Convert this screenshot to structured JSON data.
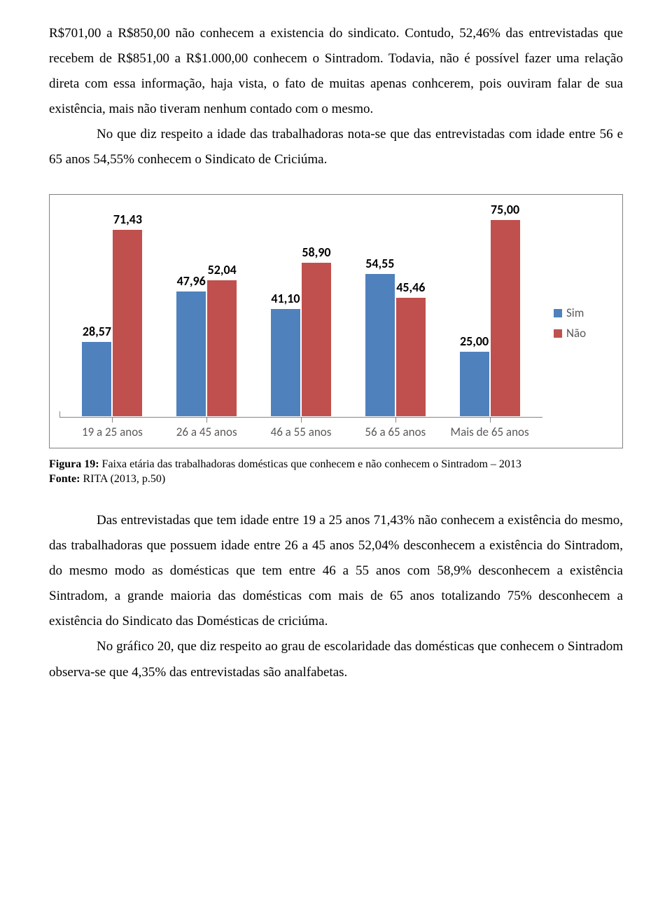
{
  "paragraphs": {
    "p1": "R$701,00 a R$850,00 não conhecem a existencia do sindicato. Contudo, 52,46% das entrevistadas que recebem de R$851,00 a R$1.000,00 conhecem o Sintradom. Todavia, não é possível fazer uma relação direta com essa informação, haja vista, o fato de muitas apenas conhcerem, pois ouviram falar de sua existência, mais não tiveram nenhum contado com o mesmo.",
    "p2": "No que diz respeito a idade das trabalhadoras nota-se que das entrevistadas com idade entre 56 e 65 anos 54,55% conhecem o Sindicato de Criciúma.",
    "p3": "Das entrevistadas que tem idade entre 19 a 25 anos 71,43% não conhecem a existência do mesmo, das trabalhadoras que possuem idade entre 26 a 45 anos 52,04% desconhecem a existência do Sintradom, do mesmo modo as domésticas que tem entre 46 a 55 anos com 58,9% desconhecem a existência Sintradom, a grande maioria  das domésticas com mais de 65 anos  totalizando 75% desconhecem a existência do Sindicato das Domésticas de criciúma.",
    "p4": "No gráfico 20, que diz respeito ao grau de escolaridade das domésticas que conhecem o Sintradom observa-se que 4,35% das entrevistadas são analfabetas."
  },
  "caption": {
    "fig_label": "Figura 19:",
    "fig_text": " Faixa etária das trabalhadoras domésticas que conhecem e não conhecem o Sintradom – 2013",
    "src_label": "Fonte:",
    "src_text": " RITA (2013, p.50)"
  },
  "chart": {
    "type": "bar",
    "ymax": 80,
    "series_colors": {
      "sim": "#4f81bd",
      "nao": "#c0504d"
    },
    "bar_border": "#ffffff",
    "axis_color": "#868686",
    "label_fontsize": 18,
    "xlabel_fontsize": 17,
    "legend": [
      {
        "key": "sim",
        "label": "Sim",
        "color": "#4f81bd"
      },
      {
        "key": "nao",
        "label": "Não",
        "color": "#c0504d"
      }
    ],
    "categories": [
      {
        "label": "19 a 25 anos",
        "sim": 28.57,
        "nao": 71.43,
        "sim_txt": "28,57",
        "nao_txt": "71,43"
      },
      {
        "label": "26 a 45 anos",
        "sim": 47.96,
        "nao": 52.04,
        "sim_txt": "47,96",
        "nao_txt": "52,04"
      },
      {
        "label": "46 a 55 anos",
        "sim": 41.1,
        "nao": 58.9,
        "sim_txt": "41,10",
        "nao_txt": "58,90"
      },
      {
        "label": "56 a 65 anos",
        "sim": 54.55,
        "nao": 45.46,
        "sim_txt": "54,55",
        "nao_txt": "45,46"
      },
      {
        "label": "Mais de 65 anos",
        "sim": 25.0,
        "nao": 75.0,
        "sim_txt": "25,00",
        "nao_txt": "75,00"
      }
    ]
  }
}
